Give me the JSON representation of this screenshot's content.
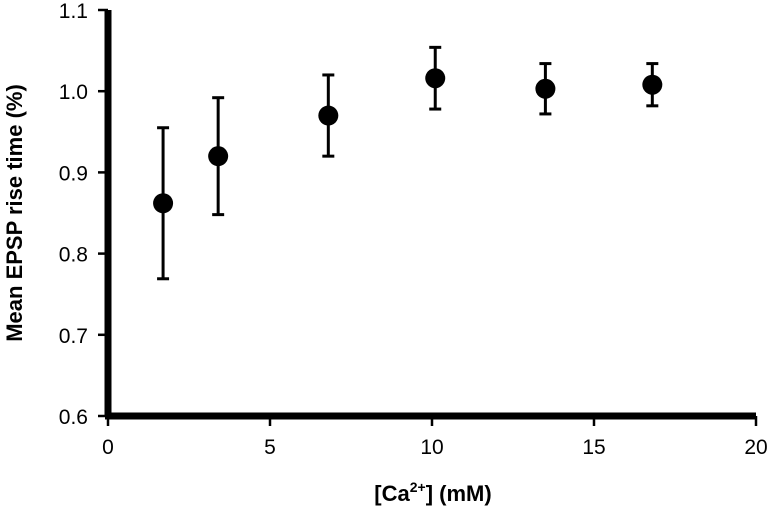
{
  "chart_data": {
    "type": "scatter",
    "title": "",
    "xlabel": "[Ca",
    "xlabel_sup": "2+",
    "xlabel_suffix": "] (mM)",
    "ylabel": "Mean EPSP rise time (%)",
    "xlim": [
      0,
      20
    ],
    "ylim": [
      0.6,
      1.1
    ],
    "xticks": [
      "0",
      "5",
      "10",
      "15",
      "20"
    ],
    "yticks": [
      "0.6",
      "0.7",
      "0.8",
      "0.9",
      "1.0",
      "1.1"
    ],
    "grid": false,
    "legend": "none",
    "series": [
      {
        "x": [
          1.7,
          3.4,
          6.8,
          10.1,
          13.5,
          16.8
        ],
        "y": [
          0.862,
          0.92,
          0.97,
          1.016,
          1.003,
          1.008
        ],
        "error": [
          0.093,
          0.072,
          0.05,
          0.038,
          0.031,
          0.026
        ]
      }
    ],
    "marker_color": "#000000"
  }
}
